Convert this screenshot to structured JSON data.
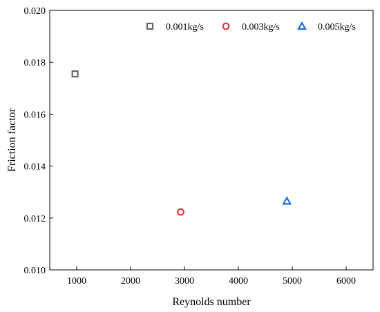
{
  "chart_data": {
    "type": "scatter",
    "title": "",
    "xlabel": "Reynolds number",
    "ylabel": "Friction factor",
    "xlim": [
      500,
      6500
    ],
    "ylim": [
      0.01,
      0.02
    ],
    "xticks": [
      1000,
      2000,
      3000,
      4000,
      5000,
      6000
    ],
    "xtick_labels": [
      "1000",
      "2000",
      "3000",
      "4000",
      "5000",
      "6000"
    ],
    "yticks": [
      0.01,
      0.012,
      0.014,
      0.016,
      0.018,
      0.02
    ],
    "ytick_labels": [
      "0.010",
      "0.012",
      "0.014",
      "0.016",
      "0.018",
      "0.020"
    ],
    "grid": false,
    "legend_position": "top-right",
    "series": [
      {
        "name": "0.001kg/s",
        "marker": "square",
        "color": "#666666",
        "points": [
          {
            "x": 970,
            "y": 0.01755
          }
        ]
      },
      {
        "name": "0.003kg/s",
        "marker": "circle",
        "color": "#e8393e",
        "points": [
          {
            "x": 2930,
            "y": 0.01223
          }
        ]
      },
      {
        "name": "0.005kg/s",
        "marker": "triangle",
        "color": "#1a6fdc",
        "points": [
          {
            "x": 4900,
            "y": 0.01265
          }
        ]
      }
    ]
  }
}
